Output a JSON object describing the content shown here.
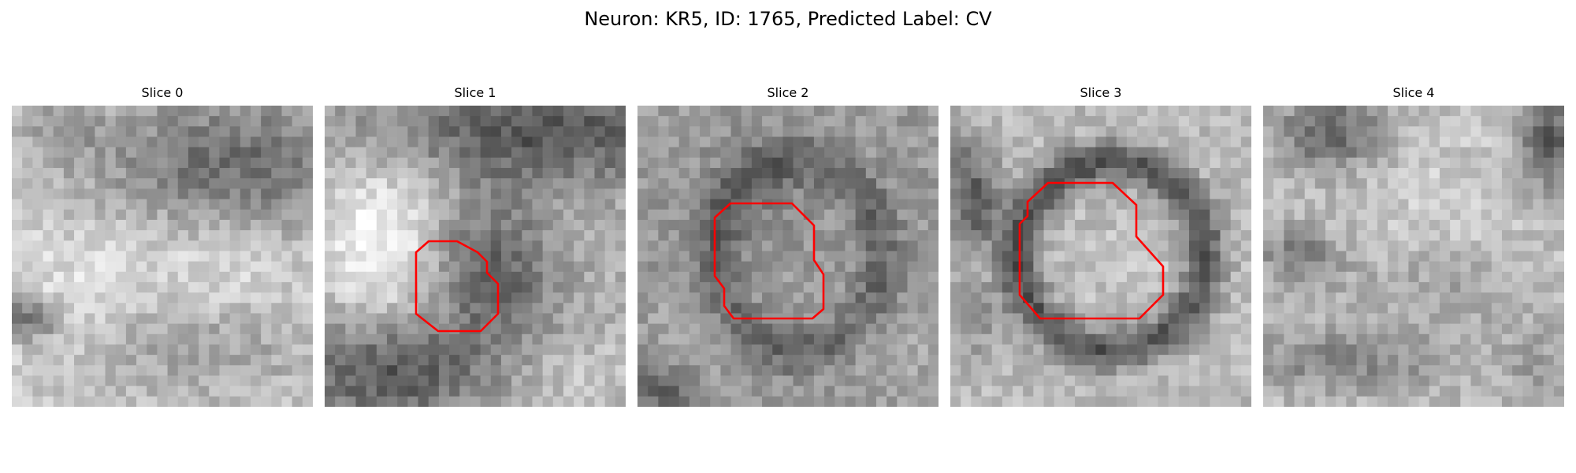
{
  "figure": {
    "title": "Neuron: KR5, ID: 1765, Predicted Label: CV"
  },
  "slices": [
    {
      "title": "Slice 0",
      "has_contour": false
    },
    {
      "title": "Slice 1",
      "has_contour": true
    },
    {
      "title": "Slice 2",
      "has_contour": true
    },
    {
      "title": "Slice 3",
      "has_contour": true
    },
    {
      "title": "Slice 4",
      "has_contour": false
    }
  ],
  "colors": {
    "contour": "#ff0000",
    "background": "#ffffff"
  }
}
